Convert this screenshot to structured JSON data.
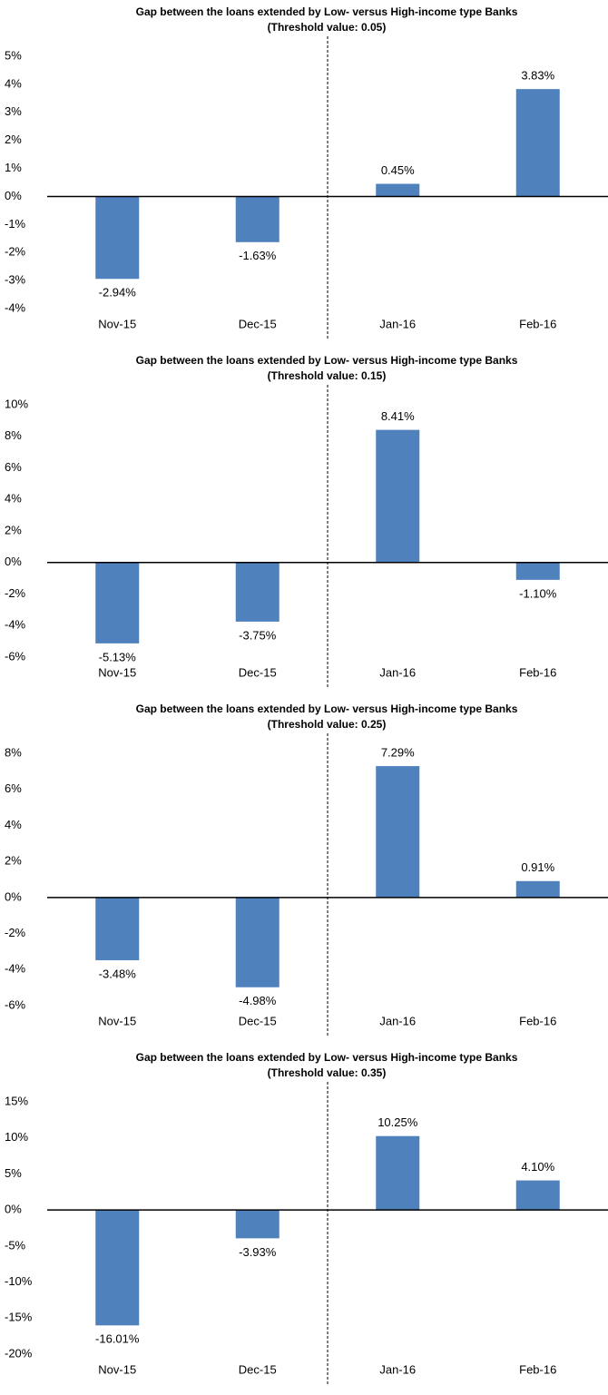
{
  "chart_data": [
    {
      "type": "bar",
      "title": "Gap between the loans extended by Low- versus High-income type Banks",
      "subtitle": "(Threshold value: 0.05)",
      "categories": [
        "Nov-15",
        "Dec-15",
        "Jan-16",
        "Feb-16"
      ],
      "values": [
        -2.94,
        -1.63,
        0.45,
        3.83
      ],
      "value_labels": [
        "-2.94%",
        "-1.63%",
        "0.45%",
        "3.83%"
      ],
      "color": "#4f81bd",
      "ylim": [
        -4,
        5
      ],
      "yticks": [
        {
          "value": 5,
          "label": "5%"
        },
        {
          "value": 4,
          "label": "4%"
        },
        {
          "value": 3,
          "label": "3%"
        },
        {
          "value": 2,
          "label": "2%"
        },
        {
          "value": 1,
          "label": "1%"
        },
        {
          "value": 0,
          "label": "0%"
        },
        {
          "value": -1,
          "label": "-1%"
        },
        {
          "value": -2,
          "label": "-2%"
        },
        {
          "value": -3,
          "label": "-3%"
        },
        {
          "value": -4,
          "label": "-4%"
        }
      ]
    },
    {
      "type": "bar",
      "title": "Gap between the loans extended by Low- versus High-income type Banks",
      "subtitle": "(Threshold value: 0.15)",
      "categories": [
        "Nov-15",
        "Dec-15",
        "Jan-16",
        "Feb-16"
      ],
      "values": [
        -5.13,
        -3.75,
        8.41,
        -1.1
      ],
      "value_labels": [
        "-5.13%",
        "-3.75%",
        "8.41%",
        "-1.10%"
      ],
      "color": "#4f81bd",
      "ylim": [
        -6,
        10
      ],
      "yticks": [
        {
          "value": 10,
          "label": "10%"
        },
        {
          "value": 8,
          "label": "8%"
        },
        {
          "value": 6,
          "label": "6%"
        },
        {
          "value": 4,
          "label": "4%"
        },
        {
          "value": 2,
          "label": "2%"
        },
        {
          "value": 0,
          "label": "0%"
        },
        {
          "value": -2,
          "label": "-2%"
        },
        {
          "value": -4,
          "label": "-4%"
        },
        {
          "value": -6,
          "label": "-6%"
        }
      ]
    },
    {
      "type": "bar",
      "title": "Gap between the loans extended by Low- versus High-income type Banks",
      "subtitle": "(Threshold value: 0.25)",
      "categories": [
        "Nov-15",
        "Dec-15",
        "Jan-16",
        "Feb-16"
      ],
      "values": [
        -3.48,
        -4.98,
        7.29,
        0.91
      ],
      "value_labels": [
        "-3.48%",
        "-4.98%",
        "7.29%",
        "0.91%"
      ],
      "color": "#4f81bd",
      "ylim": [
        -6,
        8
      ],
      "yticks": [
        {
          "value": 8,
          "label": "8%"
        },
        {
          "value": 6,
          "label": "6%"
        },
        {
          "value": 4,
          "label": "4%"
        },
        {
          "value": 2,
          "label": "2%"
        },
        {
          "value": 0,
          "label": "0%"
        },
        {
          "value": -2,
          "label": "-2%"
        },
        {
          "value": -4,
          "label": "-4%"
        },
        {
          "value": -6,
          "label": "-6%"
        }
      ]
    },
    {
      "type": "bar",
      "title": "Gap between the loans extended by Low- versus High-income type Banks",
      "subtitle": "(Threshold value: 0.35)",
      "categories": [
        "Nov-15",
        "Dec-15",
        "Jan-16",
        "Feb-16"
      ],
      "values": [
        -16.01,
        -3.93,
        10.25,
        4.1
      ],
      "value_labels": [
        "-16.01%",
        "-3.93%",
        "10.25%",
        "4.10%"
      ],
      "color": "#4f81bd",
      "ylim": [
        -20,
        15
      ],
      "yticks": [
        {
          "value": 15,
          "label": "15%"
        },
        {
          "value": 10,
          "label": "10%"
        },
        {
          "value": 5,
          "label": "5%"
        },
        {
          "value": 0,
          "label": "0%"
        },
        {
          "value": -5,
          "label": "-5%"
        },
        {
          "value": -10,
          "label": "-10%"
        },
        {
          "value": -15,
          "label": "-15%"
        },
        {
          "value": -20,
          "label": "-20%"
        }
      ]
    }
  ]
}
